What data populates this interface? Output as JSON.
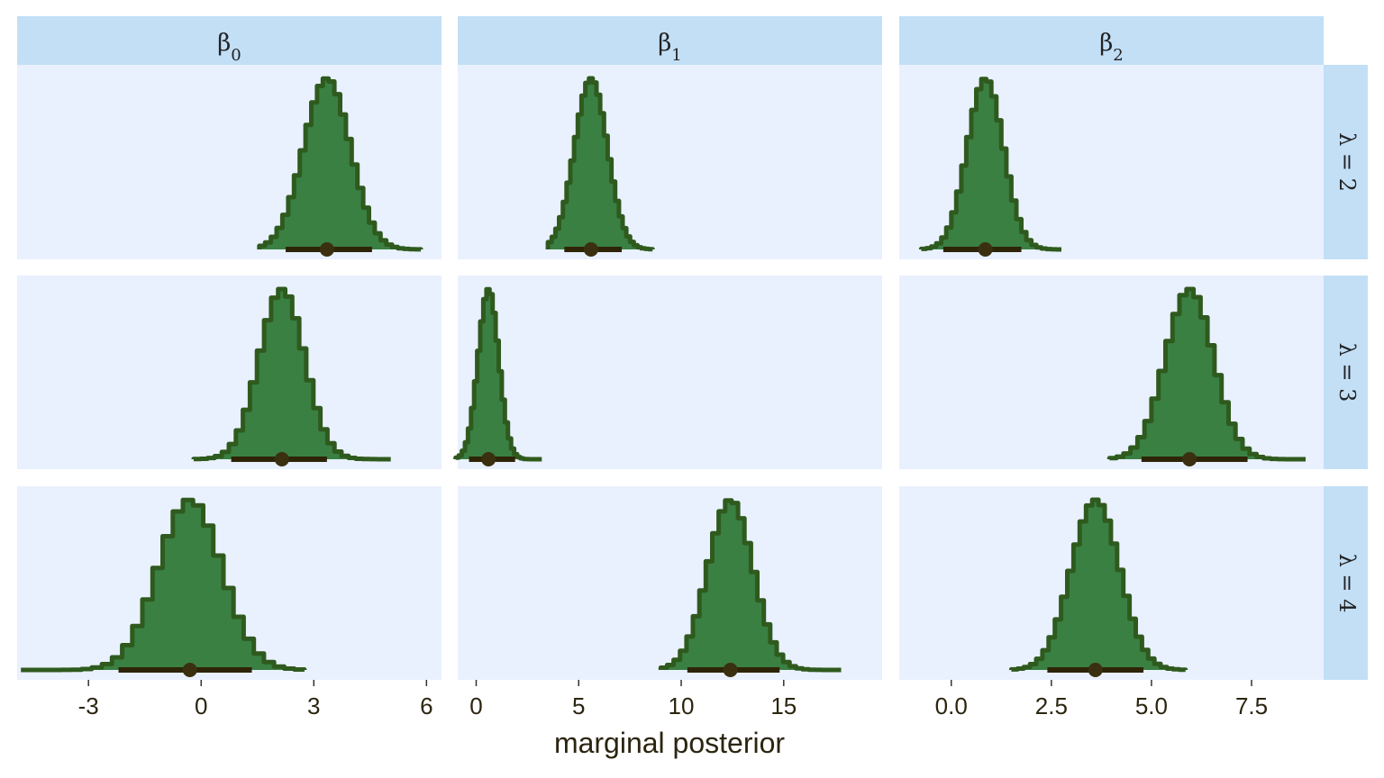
{
  "chart_data": {
    "type": "histogram-facet",
    "xlabel": "marginal posterior",
    "columns": [
      {
        "param": "β",
        "sub": "0",
        "xlim": [
          -4.9,
          6.4
        ],
        "ticks": [
          -3,
          0,
          3,
          6
        ],
        "tick_labels": [
          "-3",
          "0",
          "3",
          "6"
        ]
      },
      {
        "param": "β",
        "sub": "1",
        "xlim": [
          -0.9,
          19.8
        ],
        "ticks": [
          0,
          5,
          10,
          15
        ],
        "tick_labels": [
          "0",
          "5",
          "10",
          "15"
        ]
      },
      {
        "param": "β",
        "sub": "2",
        "xlim": [
          -1.3,
          9.3
        ],
        "ticks": [
          0,
          2.5,
          5,
          7.5
        ],
        "tick_labels": [
          "0.0",
          "2.5",
          "5.0",
          "7.5"
        ]
      }
    ],
    "rows": [
      {
        "label": "λ = 2"
      },
      {
        "label": "λ = 3"
      },
      {
        "label": "λ = 4"
      }
    ],
    "panels": [
      [
        {
          "mean": 3.35,
          "sd": 0.62,
          "range": [
            1.55,
            5.85
          ],
          "interval": [
            2.25,
            4.55
          ],
          "median": 3.35
        },
        {
          "mean": 5.6,
          "sd": 0.8,
          "range": [
            3.5,
            8.6
          ],
          "interval": [
            4.3,
            7.1
          ],
          "median": 5.6
        },
        {
          "mean": 0.85,
          "sd": 0.45,
          "range": [
            -0.75,
            2.75
          ],
          "interval": [
            -0.2,
            1.75
          ],
          "median": 0.85
        }
      ],
      [
        {
          "mean": 2.15,
          "sd": 0.6,
          "range": [
            -0.2,
            5.05
          ],
          "interval": [
            0.8,
            3.35
          ],
          "median": 2.15
        },
        {
          "mean": 0.6,
          "sd": 0.5,
          "range": [
            -1.0,
            3.2
          ],
          "interval": [
            -0.35,
            1.9
          ],
          "median": 0.6
        },
        {
          "mean": 5.95,
          "sd": 0.6,
          "range": [
            3.95,
            8.85
          ],
          "interval": [
            4.75,
            7.4
          ],
          "median": 5.95
        }
      ],
      [
        {
          "mean": -0.3,
          "sd": 0.85,
          "range": [
            -4.8,
            2.75
          ],
          "interval": [
            -2.2,
            1.35
          ],
          "median": -0.3
        },
        {
          "mean": 12.4,
          "sd": 1.1,
          "range": [
            9.0,
            17.8
          ],
          "interval": [
            10.3,
            14.8
          ],
          "median": 12.4
        },
        {
          "mean": 3.6,
          "sd": 0.6,
          "range": [
            1.5,
            5.85
          ],
          "interval": [
            2.4,
            4.8
          ],
          "median": 3.6
        }
      ]
    ],
    "colors": {
      "strip": "#c2dff6",
      "panel": "#e9f0fe",
      "fill": "#3a8042",
      "outline": "#2f5a1e",
      "interval": "#2e2408",
      "median": "#3a3010"
    }
  }
}
